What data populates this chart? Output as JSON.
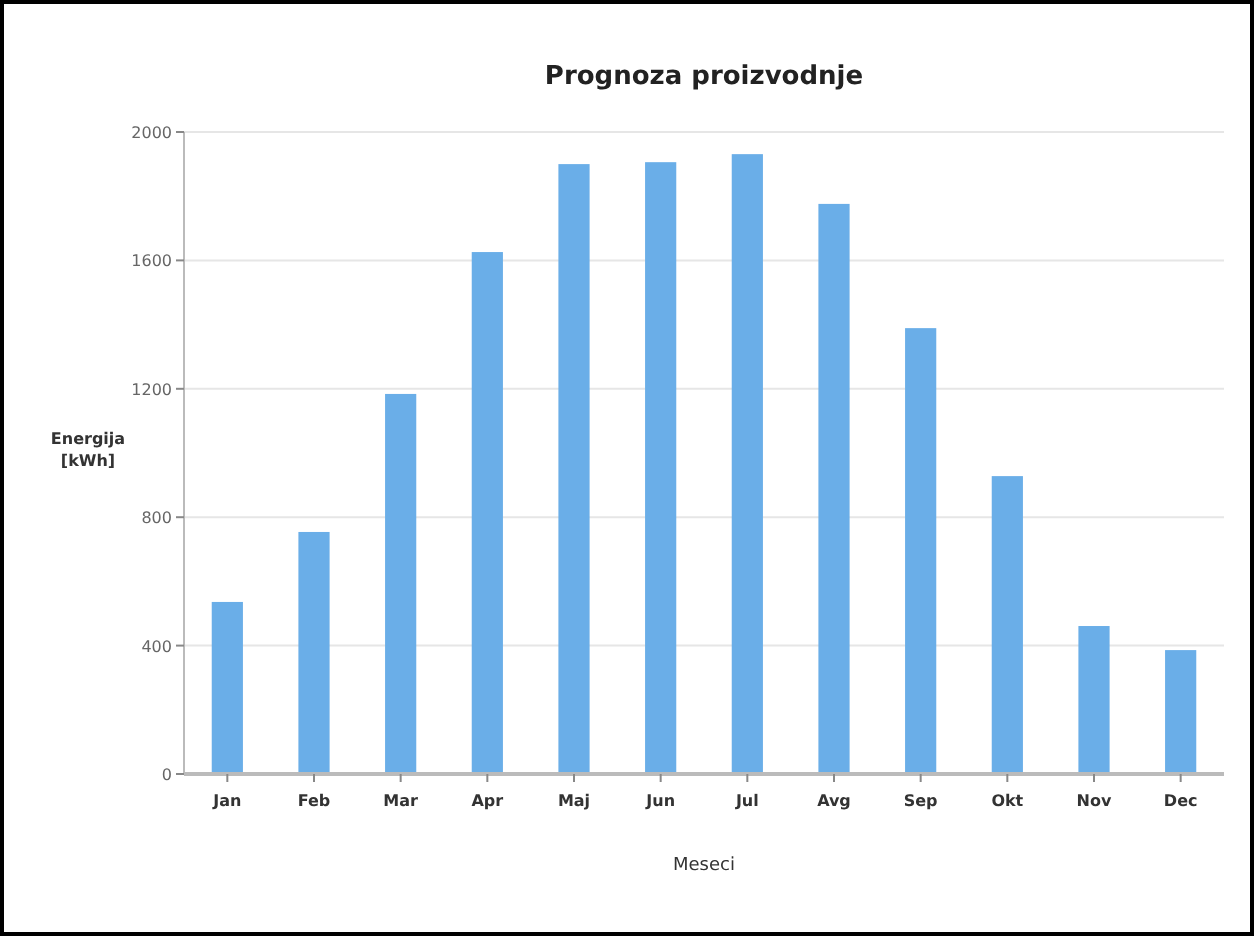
{
  "chart_data": {
    "type": "bar",
    "title": "Prognoza proizvodnje",
    "xlabel": "Meseci",
    "ylabel": "Energija [kWh]",
    "categories": [
      "Jan",
      "Feb",
      "Mar",
      "Apr",
      "Maj",
      "Jun",
      "Jul",
      "Avg",
      "Sep",
      "Okt",
      "Nov",
      "Dec"
    ],
    "values": [
      536,
      754,
      1184,
      1626,
      1900,
      1906,
      1931,
      1776,
      1389,
      928,
      461,
      386
    ],
    "color": "#6aaee8",
    "ylim": [
      0,
      2000
    ],
    "yticks": [
      0,
      400,
      800,
      1200,
      1600,
      2000
    ],
    "grid": "y"
  }
}
